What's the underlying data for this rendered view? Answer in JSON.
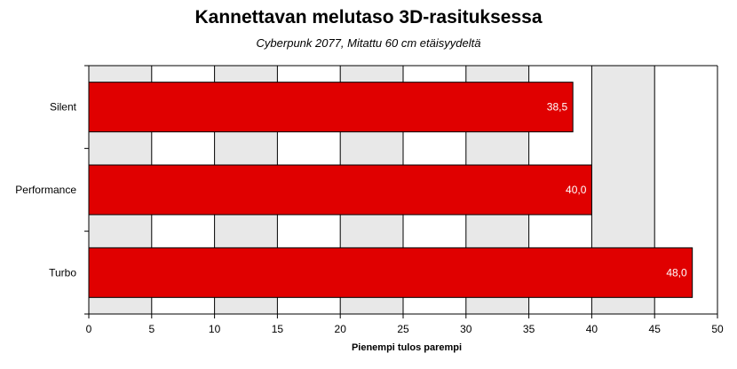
{
  "chart_data": {
    "type": "bar",
    "orientation": "horizontal",
    "title": "Kannettavan melutaso 3D-rasituksessa",
    "subtitle": "Cyberpunk 2077, Mitattu 60 cm etäisyydeltä",
    "xlabel": "Pienempi tulos parempi",
    "ylabel": "",
    "categories": [
      "Silent",
      "Performance",
      "Turbo"
    ],
    "values": [
      38.5,
      40.0,
      48.0
    ],
    "value_labels": [
      "38,5",
      "40,0",
      "48,0"
    ],
    "xlim": [
      0,
      50
    ],
    "xticks": [
      0,
      5,
      10,
      15,
      20,
      25,
      30,
      35,
      40,
      45,
      50
    ],
    "grid": true,
    "legend": "none",
    "colors": {
      "bar": "#e00000",
      "bar_border": "#000000",
      "band_light": "#e8e8e8",
      "band_white": "#ffffff",
      "gridline": "#000000"
    }
  }
}
